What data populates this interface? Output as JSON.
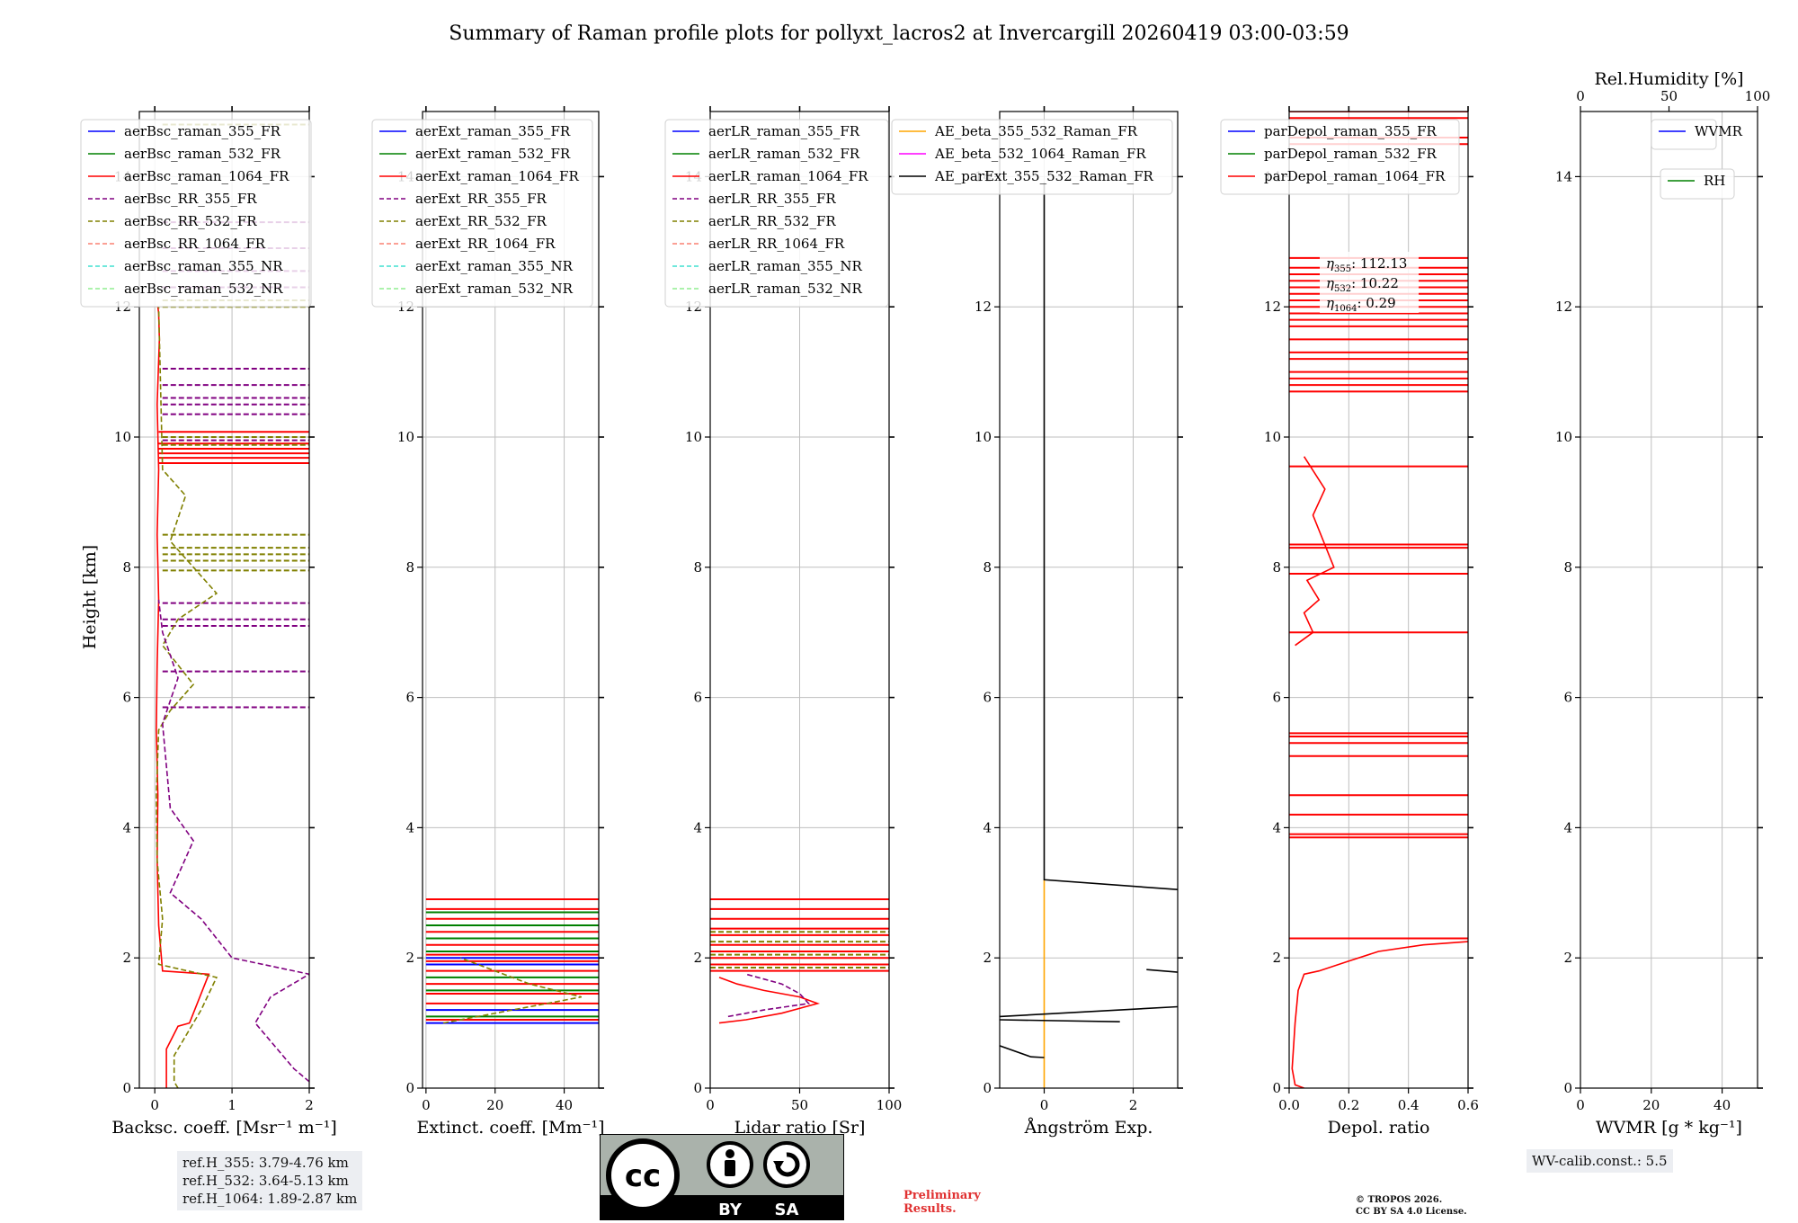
{
  "title": "Summary of Raman profile plots for pollyxt_lacros2 at Invercargill 20260419 03:00-03:59",
  "y_label": "Height [km]",
  "colors": {
    "blue": "#0000ff",
    "green": "#008000",
    "red": "#ff0000",
    "purple": "#800080",
    "olive": "#808000",
    "salmon": "#fa8072",
    "turquoise": "#40e0d0",
    "lightgreen": "#90ee90",
    "orange": "#ffa500",
    "magenta": "#ff00ff",
    "black": "#000000"
  },
  "chart_data": [
    {
      "type": "line",
      "xlabel": "Backsc. coeff. [Msr⁻¹ m⁻¹]",
      "xlim": [
        -0.2,
        2
      ],
      "ylim": [
        0,
        15
      ],
      "xticks": [
        0,
        1,
        2
      ],
      "yticks": [
        0,
        2,
        4,
        6,
        8,
        10,
        12,
        14
      ],
      "legend": [
        {
          "name": "aerBsc_raman_355_FR",
          "color": "blue",
          "dash": false
        },
        {
          "name": "aerBsc_raman_532_FR",
          "color": "green",
          "dash": false
        },
        {
          "name": "aerBsc_raman_1064_FR",
          "color": "red",
          "dash": false
        },
        {
          "name": "aerBsc_RR_355_FR",
          "color": "purple",
          "dash": true
        },
        {
          "name": "aerBsc_RR_532_FR",
          "color": "olive",
          "dash": true
        },
        {
          "name": "aerBsc_RR_1064_FR",
          "color": "salmon",
          "dash": true
        },
        {
          "name": "aerBsc_raman_355_NR",
          "color": "turquoise",
          "dash": true
        },
        {
          "name": "aerBsc_raman_532_NR",
          "color": "lightgreen",
          "dash": true
        }
      ],
      "series": [
        {
          "name": "aerBsc_raman_1064_FR",
          "color": "red",
          "dash": false,
          "x": [
            0.15,
            0.15,
            0.3,
            0.45,
            0.7,
            0.1,
            0.05,
            0.03,
            0.04,
            0.02,
            0.03,
            0.05,
            0.03,
            0.05,
            0.03,
            0.06,
            0.05,
            0.04
          ],
          "y": [
            0,
            0.6,
            0.95,
            1.0,
            1.75,
            1.8,
            2.5,
            3.5,
            4.5,
            5.5,
            6.5,
            7.5,
            8.5,
            9.5,
            10.5,
            11.5,
            11.9,
            12.0
          ]
        },
        {
          "name": "aerBsc_RR_532_FR",
          "color": "olive",
          "dash": true,
          "x": [
            0.3,
            0.25,
            0.25,
            0.6,
            0.8,
            0.05,
            0.1,
            0.03,
            0.02,
            0.05,
            0.2,
            0.5,
            0.1,
            0.3,
            0.8,
            0.2,
            0.4,
            0.1,
            0.05
          ],
          "y": [
            0,
            0.1,
            0.5,
            1.2,
            1.7,
            1.9,
            2.6,
            3.5,
            4.5,
            5.5,
            5.8,
            6.2,
            6.8,
            7.2,
            7.6,
            8.4,
            9.1,
            9.5,
            12.0
          ]
        },
        {
          "name": "aerBsc_RR_355_FR",
          "color": "purple",
          "dash": true,
          "x": [
            2.0,
            1.8,
            1.3,
            1.5,
            2.0,
            1.0,
            0.6,
            0.2,
            0.5,
            0.2,
            0.1,
            0.3,
            0.1,
            0.05
          ],
          "y": [
            0.1,
            0.3,
            1.0,
            1.4,
            1.75,
            2.0,
            2.6,
            3.0,
            3.8,
            4.3,
            5.6,
            6.3,
            7.0,
            7.5
          ]
        }
      ],
      "spikes": [
        {
          "color": "red",
          "dash": false,
          "x_range": [
            0.05,
            2.0
          ],
          "y": [
            9.6,
            9.68,
            9.75,
            9.82,
            9.9,
            10.08
          ]
        },
        {
          "color": "purple",
          "dash": true,
          "x_range": [
            0.1,
            2.0
          ],
          "y": [
            5.85,
            6.4,
            7.1,
            7.2,
            7.45,
            9.95,
            10.35,
            10.5,
            10.6,
            10.8,
            11.05,
            12.3,
            12.55,
            12.9,
            13.3
          ]
        },
        {
          "color": "olive",
          "dash": true,
          "x_range": [
            0.1,
            2.0
          ],
          "y": [
            7.95,
            8.1,
            8.2,
            8.3,
            8.5,
            9.88,
            10.0,
            12.0,
            12.1,
            14.8
          ]
        }
      ]
    },
    {
      "type": "line",
      "xlabel": "Extinct. coeff. [Mm⁻¹]",
      "xlim": [
        -1,
        50
      ],
      "ylim": [
        0,
        15
      ],
      "xticks": [
        0,
        20,
        40
      ],
      "yticks": [
        0,
        2,
        4,
        6,
        8,
        10,
        12,
        14
      ],
      "legend": [
        {
          "name": "aerExt_raman_355_FR",
          "color": "blue",
          "dash": false
        },
        {
          "name": "aerExt_raman_532_FR",
          "color": "green",
          "dash": false
        },
        {
          "name": "aerExt_raman_1064_FR",
          "color": "red",
          "dash": false
        },
        {
          "name": "aerExt_RR_355_FR",
          "color": "purple",
          "dash": true
        },
        {
          "name": "aerExt_RR_532_FR",
          "color": "olive",
          "dash": true
        },
        {
          "name": "aerExt_RR_1064_FR",
          "color": "salmon",
          "dash": true
        },
        {
          "name": "aerExt_raman_355_NR",
          "color": "turquoise",
          "dash": true
        },
        {
          "name": "aerExt_raman_532_NR",
          "color": "lightgreen",
          "dash": true
        }
      ],
      "series": [
        {
          "name": "aerExt_RR_532_FR",
          "color": "olive",
          "dash": true,
          "x": [
            5,
            15,
            25,
            35,
            45,
            30,
            20,
            10
          ],
          "y": [
            1.0,
            1.1,
            1.2,
            1.3,
            1.4,
            1.6,
            1.8,
            2.0
          ]
        }
      ],
      "spikes": [
        {
          "color": "blue",
          "dash": false,
          "x_range": [
            0,
            50
          ],
          "y": [
            1.0,
            1.2,
            1.9,
            2.0
          ]
        },
        {
          "color": "green",
          "dash": false,
          "x_range": [
            0,
            50
          ],
          "y": [
            1.1,
            1.5,
            1.7,
            2.1,
            2.3,
            2.5,
            2.7
          ]
        },
        {
          "color": "red",
          "dash": false,
          "x_range": [
            0,
            50
          ],
          "y": [
            1.05,
            1.3,
            1.45,
            1.6,
            1.8,
            1.95,
            2.05,
            2.2,
            2.4,
            2.6,
            2.75,
            2.9
          ]
        }
      ]
    },
    {
      "type": "line",
      "xlabel": "Lidar ratio [Sr]",
      "xlim": [
        0,
        100
      ],
      "ylim": [
        0,
        15
      ],
      "xticks": [
        0,
        50,
        100
      ],
      "yticks": [
        0,
        2,
        4,
        6,
        8,
        10,
        12,
        14
      ],
      "legend": [
        {
          "name": "aerLR_raman_355_FR",
          "color": "blue",
          "dash": false
        },
        {
          "name": "aerLR_raman_532_FR",
          "color": "green",
          "dash": false
        },
        {
          "name": "aerLR_raman_1064_FR",
          "color": "red",
          "dash": false
        },
        {
          "name": "aerLR_RR_355_FR",
          "color": "purple",
          "dash": true
        },
        {
          "name": "aerLR_RR_532_FR",
          "color": "olive",
          "dash": true
        },
        {
          "name": "aerLR_RR_1064_FR",
          "color": "salmon",
          "dash": true
        },
        {
          "name": "aerLR_raman_355_NR",
          "color": "turquoise",
          "dash": true
        },
        {
          "name": "aerLR_raman_532_NR",
          "color": "lightgreen",
          "dash": true
        }
      ],
      "series": [
        {
          "name": "aerLR_raman_1064_FR",
          "color": "red",
          "dash": false,
          "x": [
            5,
            20,
            40,
            60,
            50,
            30,
            15,
            5
          ],
          "y": [
            1.0,
            1.05,
            1.15,
            1.3,
            1.4,
            1.5,
            1.6,
            1.7
          ]
        },
        {
          "name": "aerLR_RR_355_FR",
          "color": "purple",
          "dash": true,
          "x": [
            10,
            30,
            55,
            50,
            40,
            20
          ],
          "y": [
            1.1,
            1.2,
            1.3,
            1.45,
            1.6,
            1.75
          ]
        }
      ],
      "spikes": [
        {
          "color": "red",
          "dash": false,
          "x_range": [
            0,
            100
          ],
          "y": [
            1.8,
            1.9,
            2.0,
            2.1,
            2.2,
            2.35,
            2.45,
            2.6,
            2.75,
            2.9
          ]
        },
        {
          "color": "olive",
          "dash": true,
          "x_range": [
            0,
            100
          ],
          "y": [
            1.85,
            2.05,
            2.25,
            2.4
          ]
        }
      ]
    },
    {
      "type": "line",
      "xlabel": "Ångström Exp.",
      "xlim": [
        -1,
        3
      ],
      "ylim": [
        0,
        15
      ],
      "xticks": [
        0,
        2
      ],
      "yticks": [
        0,
        2,
        4,
        6,
        8,
        10,
        12,
        14
      ],
      "legend": [
        {
          "name": "AE_beta_355_532_Raman_FR",
          "color": "orange",
          "dash": false
        },
        {
          "name": "AE_beta_532_1064_Raman_FR",
          "color": "magenta",
          "dash": false
        },
        {
          "name": "AE_parExt_355_532_Raman_FR",
          "color": "black",
          "dash": false
        }
      ],
      "series": [
        {
          "name": "AE_beta_355_532_Raman_FR",
          "color": "orange",
          "dash": false,
          "x": [
            0,
            0
          ],
          "y": [
            0,
            3.2
          ]
        },
        {
          "name": "AE_parExt_355_532_Raman_FR",
          "color": "black",
          "dash": false,
          "x": [
            0,
            0,
            3.0
          ],
          "y": [
            13.9,
            3.2,
            3.05
          ]
        },
        {
          "name": "AE_parExt_355_532_Raman_FR",
          "color": "black",
          "dash": false,
          "x": [
            -1.0,
            3.0
          ],
          "y": [
            1.1,
            1.25
          ]
        },
        {
          "name": "AE_parExt_355_532_Raman_FR",
          "color": "black",
          "dash": false,
          "x": [
            -1.0,
            1.7
          ],
          "y": [
            1.05,
            1.02
          ]
        },
        {
          "name": "AE_parExt_355_532_Raman_FR",
          "color": "black",
          "dash": false,
          "x": [
            -1.0,
            -0.3,
            0.0
          ],
          "y": [
            0.65,
            0.48,
            0.47
          ]
        },
        {
          "name": "AE_parExt_355_532_Raman_FR",
          "color": "black",
          "dash": false,
          "x": [
            2.3,
            3.0
          ],
          "y": [
            1.82,
            1.78
          ]
        }
      ],
      "spikes": []
    },
    {
      "type": "line",
      "xlabel": "Depol. ratio",
      "xlim": [
        0,
        0.6
      ],
      "ylim": [
        0,
        15
      ],
      "xticks": [
        0.0,
        0.2,
        0.4,
        0.6
      ],
      "yticks": [
        0,
        2,
        4,
        6,
        8,
        10,
        12,
        14
      ],
      "legend": [
        {
          "name": "parDepol_raman_355_FR",
          "color": "blue",
          "dash": false
        },
        {
          "name": "parDepol_raman_532_FR",
          "color": "green",
          "dash": false
        },
        {
          "name": "parDepol_raman_1064_FR",
          "color": "red",
          "dash": false
        }
      ],
      "annotation": {
        "eta355": "112.13",
        "eta532": "10.22",
        "eta1064": "0.29"
      },
      "series": [
        {
          "name": "parDepol_raman_1064_FR",
          "color": "red",
          "dash": false,
          "x": [
            0.05,
            0.02,
            0.01,
            0.02,
            0.03,
            0.05,
            0.1,
            0.2,
            0.3,
            0.45,
            0.6
          ],
          "y": [
            0,
            0.05,
            0.3,
            1.0,
            1.5,
            1.75,
            1.8,
            1.95,
            2.1,
            2.2,
            2.25
          ]
        },
        {
          "name": "parDepol_raman_1064_FR",
          "color": "red",
          "dash": false,
          "x": [
            0.02,
            0.08,
            0.05,
            0.1,
            0.06,
            0.15,
            0.08,
            0.12,
            0.05
          ],
          "y": [
            6.8,
            7.0,
            7.3,
            7.5,
            7.8,
            8.0,
            8.8,
            9.2,
            9.7
          ]
        }
      ],
      "spikes": [
        {
          "color": "red",
          "dash": false,
          "x_range": [
            0,
            0.6
          ],
          "y": [
            2.3,
            3.85,
            3.9,
            4.2,
            4.5,
            5.1,
            5.3,
            5.4,
            5.45,
            7.0,
            7.9,
            8.3,
            8.35,
            9.55,
            10.7,
            10.8,
            10.9,
            11.0,
            11.2,
            11.3,
            11.5,
            11.7,
            11.8,
            11.9,
            12.0,
            12.1,
            12.2,
            12.3,
            12.4,
            12.5,
            12.6,
            12.75,
            14.5,
            14.6,
            14.9,
            15.0
          ]
        }
      ]
    },
    {
      "type": "line",
      "xlabel": "WVMR [g * kg⁻¹]",
      "xlim": [
        0,
        50
      ],
      "ylim": [
        0,
        15
      ],
      "xticks": [
        0,
        20,
        40
      ],
      "yticks": [
        0,
        2,
        4,
        6,
        8,
        10,
        12,
        14
      ],
      "top_axis": {
        "label": "Rel.Humidity [%]",
        "ticks": [
          0,
          50,
          100
        ]
      },
      "legend": [
        {
          "name": "WVMR",
          "color": "blue",
          "dash": false
        }
      ],
      "legend2": [
        {
          "name": "RH",
          "color": "green",
          "dash": false
        }
      ],
      "series": [],
      "spikes": []
    }
  ],
  "notes": {
    "ref_lines": [
      "ref.H_355: 3.79-4.76 km",
      "ref.H_532: 3.64-5.13 km",
      "ref.H_1064: 1.89-2.87 km"
    ],
    "wv_calib": "WV-calib.const.: 5.5",
    "preliminary": [
      "Preliminary",
      "Results."
    ],
    "copyright": [
      "© TROPOS 2026.",
      "CC BY SA 4.0 License."
    ]
  },
  "license_badge": {
    "cc": "cc",
    "by": "BY",
    "sa": "SA"
  }
}
